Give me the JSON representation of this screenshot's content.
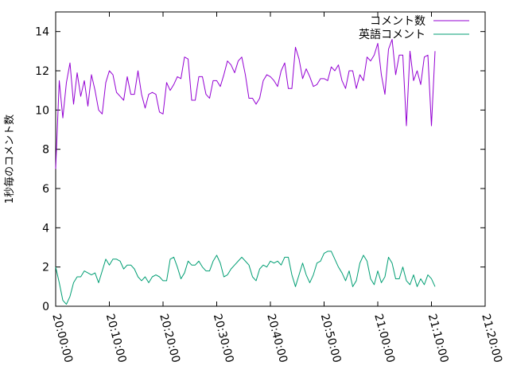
{
  "chart_data": {
    "type": "line",
    "ylabel": "1秒毎のコメント数",
    "xlabel": "",
    "ylim": [
      0,
      15
    ],
    "y_ticks": [
      "0",
      "2",
      "4",
      "6",
      "8",
      "10",
      "12",
      "14"
    ],
    "x_range": [
      "20:00:00",
      "21:20:00"
    ],
    "x_ticks": [
      "20:00:00",
      "20:10:00",
      "20:20:00",
      "20:30:00",
      "20:40:00",
      "20:50:00",
      "21:00:00",
      "21:10:00",
      "21:20:00"
    ],
    "grid": false,
    "legend_position": "top-right",
    "x": [
      "20:00:00",
      "20:00:40",
      "20:01:20",
      "20:02:00",
      "20:02:40",
      "20:03:20",
      "20:04:00",
      "20:04:40",
      "20:05:20",
      "20:06:00",
      "20:06:40",
      "20:07:20",
      "20:08:00",
      "20:08:40",
      "20:09:20",
      "20:10:00",
      "20:10:40",
      "20:11:20",
      "20:12:00",
      "20:12:40",
      "20:13:20",
      "20:14:00",
      "20:14:40",
      "20:15:20",
      "20:16:00",
      "20:16:40",
      "20:17:20",
      "20:18:00",
      "20:18:40",
      "20:19:20",
      "20:20:00",
      "20:20:40",
      "20:21:20",
      "20:22:00",
      "20:22:40",
      "20:23:20",
      "20:24:00",
      "20:24:40",
      "20:25:20",
      "20:26:00",
      "20:26:40",
      "20:27:20",
      "20:28:00",
      "20:28:40",
      "20:29:20",
      "20:30:00",
      "20:30:40",
      "20:31:20",
      "20:32:00",
      "20:32:40",
      "20:33:20",
      "20:34:00",
      "20:34:40",
      "20:35:20",
      "20:36:00",
      "20:36:40",
      "20:37:20",
      "20:38:00",
      "20:38:40",
      "20:39:20",
      "20:40:00",
      "20:40:40",
      "20:41:20",
      "20:42:00",
      "20:42:40",
      "20:43:20",
      "20:44:00",
      "20:44:40",
      "20:45:20",
      "20:46:00",
      "20:46:40",
      "20:47:20",
      "20:48:00",
      "20:48:40",
      "20:49:20",
      "20:50:00",
      "20:50:40",
      "20:51:20",
      "20:52:00",
      "20:52:40",
      "20:53:20",
      "20:54:00",
      "20:54:40",
      "20:55:20",
      "20:56:00",
      "20:56:40",
      "20:57:20",
      "20:58:00",
      "20:58:40",
      "20:59:20",
      "21:00:00",
      "21:00:40",
      "21:01:20",
      "21:02:00",
      "21:02:40",
      "21:03:20",
      "21:04:00",
      "21:04:40",
      "21:05:20",
      "21:06:00",
      "21:06:40",
      "21:07:20",
      "21:08:00",
      "21:08:40",
      "21:09:20",
      "21:10:00",
      "21:10:40"
    ],
    "series": [
      {
        "name": "コメント数",
        "color": "#9400d3",
        "values": [
          7.0,
          11.5,
          9.6,
          11.4,
          12.4,
          10.3,
          11.9,
          10.7,
          11.5,
          10.2,
          11.8,
          11.0,
          10.0,
          9.8,
          11.4,
          12.0,
          11.8,
          10.9,
          10.7,
          10.5,
          11.7,
          10.8,
          10.8,
          12.0,
          10.8,
          10.1,
          10.8,
          10.9,
          10.8,
          9.9,
          9.8,
          11.4,
          11.0,
          11.3,
          11.7,
          11.6,
          12.7,
          12.6,
          10.5,
          10.5,
          11.7,
          11.7,
          10.8,
          10.6,
          11.5,
          11.5,
          11.2,
          11.8,
          12.5,
          12.3,
          11.9,
          12.5,
          12.7,
          11.8,
          10.6,
          10.6,
          10.3,
          10.6,
          11.5,
          11.8,
          11.7,
          11.5,
          11.2,
          12.0,
          12.4,
          11.1,
          11.1,
          13.2,
          12.6,
          11.6,
          12.1,
          11.7,
          11.2,
          11.3,
          11.6,
          11.6,
          11.5,
          12.2,
          12.0,
          12.3,
          11.5,
          11.1,
          12.0,
          12.0,
          11.1,
          11.8,
          11.5,
          12.7,
          12.5,
          12.8,
          13.4,
          11.8,
          10.8,
          13.1,
          13.6,
          11.8,
          12.8,
          12.8,
          9.2,
          13.0,
          11.5,
          12.0,
          11.3,
          12.7,
          12.8,
          9.2,
          13.0
        ]
      },
      {
        "name": "英語コメント",
        "color": "#009e73",
        "values": [
          2.0,
          1.2,
          0.3,
          0.1,
          0.5,
          1.2,
          1.5,
          1.5,
          1.8,
          1.7,
          1.6,
          1.7,
          1.2,
          1.8,
          2.4,
          2.1,
          2.4,
          2.4,
          2.3,
          1.9,
          2.1,
          2.1,
          1.9,
          1.5,
          1.3,
          1.5,
          1.2,
          1.5,
          1.6,
          1.5,
          1.3,
          1.3,
          2.4,
          2.5,
          2.0,
          1.4,
          1.7,
          2.3,
          2.1,
          2.1,
          2.3,
          2.0,
          1.8,
          1.8,
          2.3,
          2.6,
          2.2,
          1.5,
          1.6,
          1.9,
          2.1,
          2.3,
          2.5,
          2.3,
          2.1,
          1.5,
          1.3,
          1.9,
          2.1,
          2.0,
          2.3,
          2.2,
          2.3,
          2.1,
          2.5,
          2.5,
          1.6,
          1.0,
          1.6,
          2.2,
          1.6,
          1.2,
          1.6,
          2.2,
          2.3,
          2.7,
          2.8,
          2.8,
          2.4,
          2.0,
          1.7,
          1.3,
          1.8,
          1.0,
          1.3,
          2.2,
          2.6,
          2.3,
          1.4,
          1.1,
          1.8,
          1.2,
          1.5,
          2.5,
          2.2,
          1.4,
          1.4,
          2.0,
          1.3,
          1.1,
          1.6,
          1.0,
          1.4,
          1.1,
          1.6,
          1.4,
          1.0
        ]
      }
    ]
  }
}
